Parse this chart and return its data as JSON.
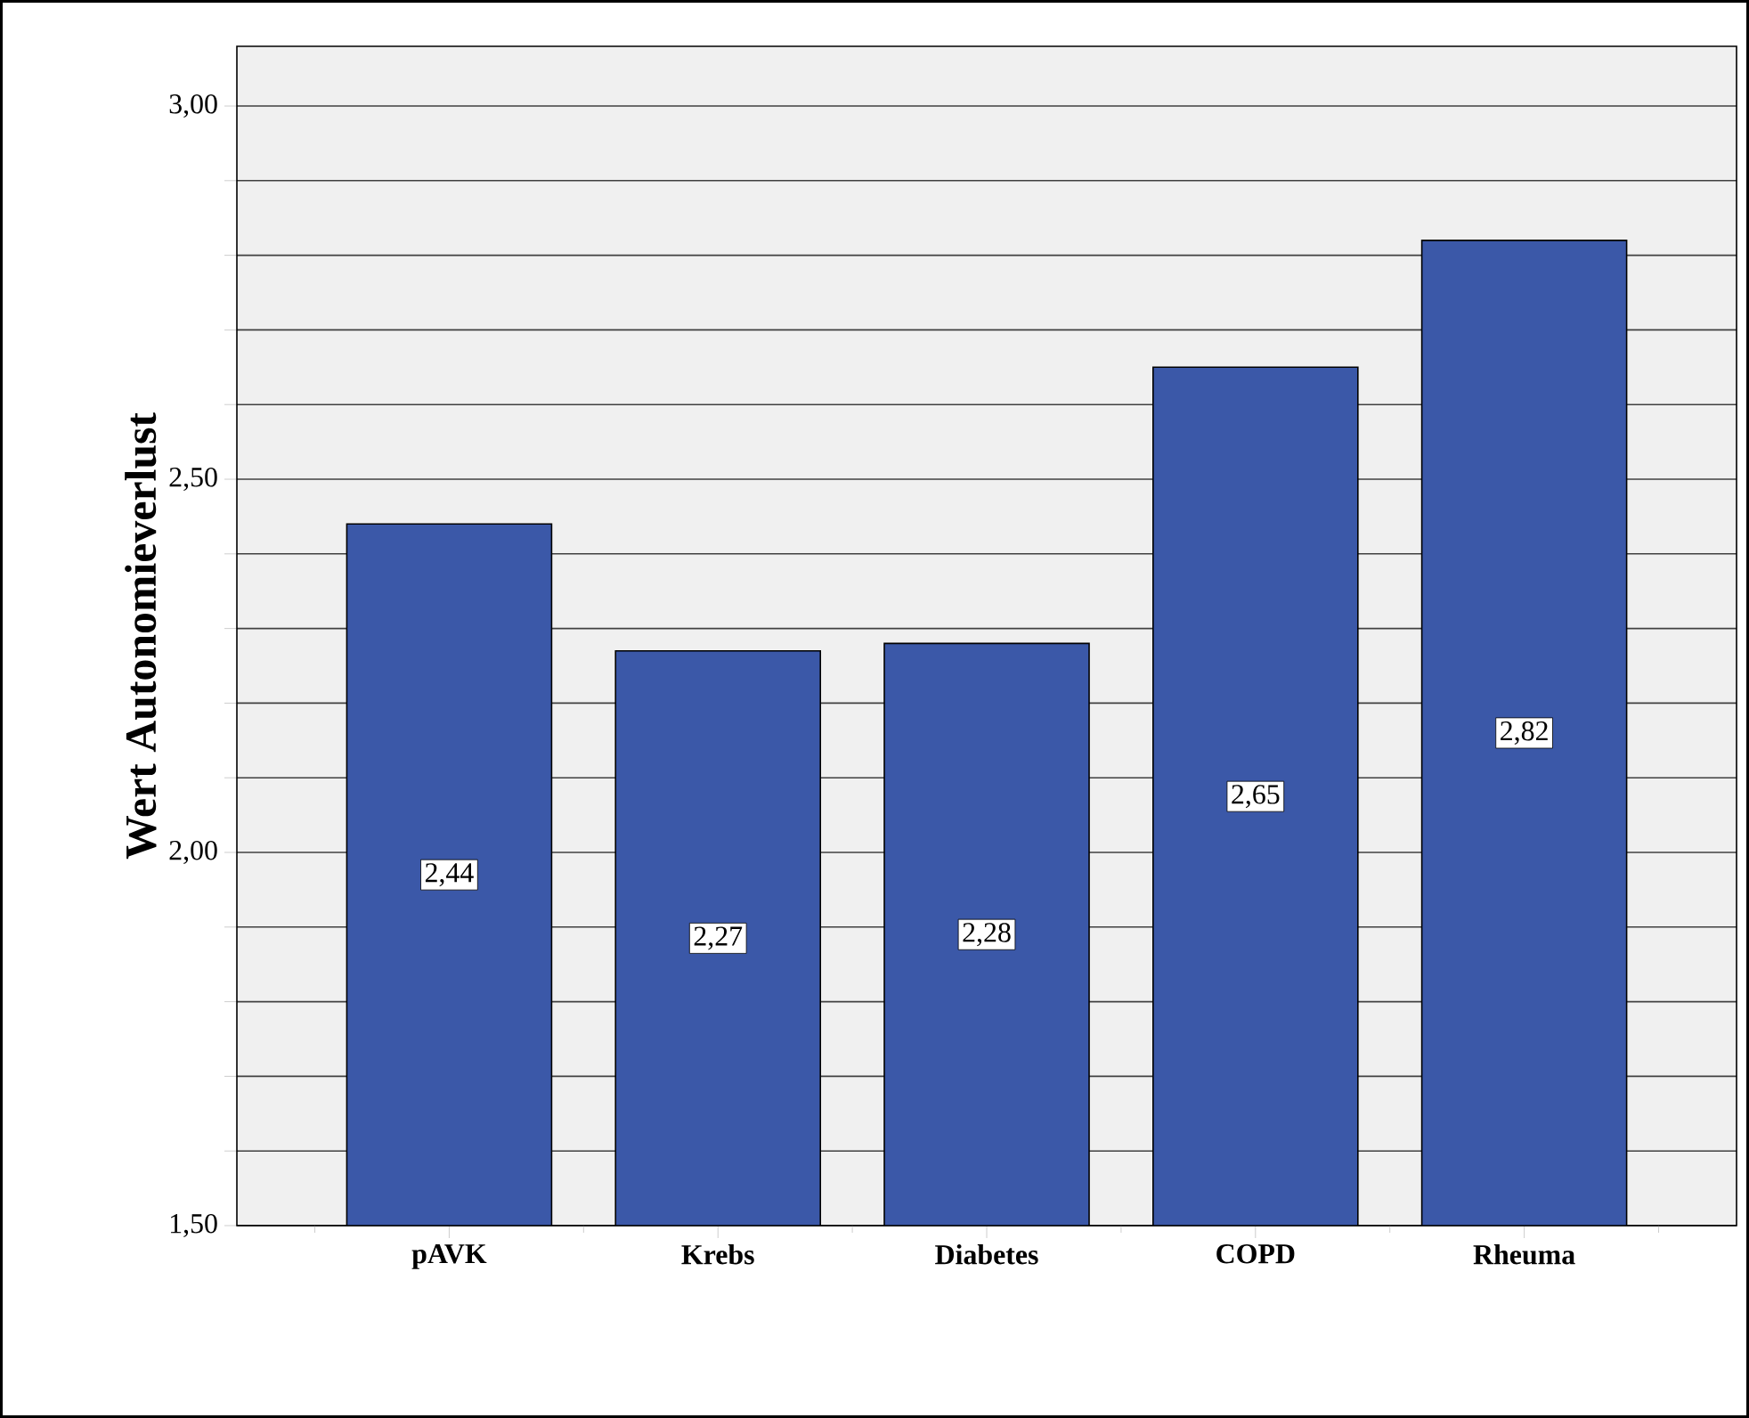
{
  "chart_data": {
    "type": "bar",
    "ylabel": "Wert Autonomieverlust",
    "categories": [
      "pAVK",
      "Krebs",
      "Diabetes",
      "COPD",
      "Rheuma"
    ],
    "values": [
      2.44,
      2.27,
      2.28,
      2.65,
      2.82
    ],
    "value_labels": [
      "2,44",
      "2,27",
      "2,28",
      "2,65",
      "2,82"
    ],
    "color": "#3b58a8",
    "ylim": [
      1.5,
      3.08
    ],
    "yticks": [
      {
        "value": 1.5,
        "label": "1,50"
      },
      {
        "value": 1.6,
        "label": null
      },
      {
        "value": 1.7,
        "label": null
      },
      {
        "value": 1.8,
        "label": null
      },
      {
        "value": 1.9,
        "label": null
      },
      {
        "value": 2.0,
        "label": "2,00"
      },
      {
        "value": 2.1,
        "label": null
      },
      {
        "value": 2.2,
        "label": null
      },
      {
        "value": 2.3,
        "label": null
      },
      {
        "value": 2.4,
        "label": null
      },
      {
        "value": 2.5,
        "label": "2,50"
      },
      {
        "value": 2.6,
        "label": null
      },
      {
        "value": 2.7,
        "label": null
      },
      {
        "value": 2.8,
        "label": null
      },
      {
        "value": 2.9,
        "label": null
      },
      {
        "value": 3.0,
        "label": "3,00"
      }
    ],
    "grid": "y"
  }
}
